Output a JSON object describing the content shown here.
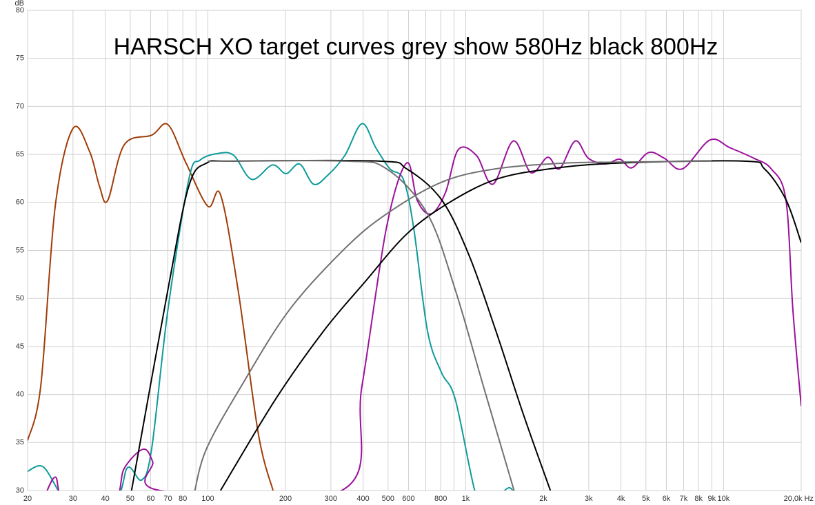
{
  "chart_data": {
    "type": "line",
    "title": "HARSCH XO target curves grey show 580Hz black 800Hz",
    "y_label": "dB",
    "log_x": true,
    "grid": true,
    "xlim": [
      20,
      20000
    ],
    "ylim": [
      30,
      80
    ],
    "yticks": [
      30,
      35,
      40,
      45,
      50,
      55,
      60,
      65,
      70,
      75,
      80
    ],
    "xticks": [
      20,
      30,
      40,
      50,
      60,
      70,
      80,
      100,
      200,
      300,
      400,
      500,
      600,
      800,
      {
        "value": 1000,
        "label": "1k"
      },
      {
        "value": 2000,
        "label": "2k"
      },
      {
        "value": 3000,
        "label": "3k"
      },
      {
        "value": 4000,
        "label": "4k"
      },
      {
        "value": 5000,
        "label": "5k"
      },
      {
        "value": 6000,
        "label": "6k"
      },
      {
        "value": 7000,
        "label": "7k"
      },
      {
        "value": 8000,
        "label": "8k"
      },
      {
        "value": 9000,
        "label": "9k"
      },
      {
        "value": 10000,
        "label": "10k"
      },
      {
        "value": 20000,
        "label": "20,0k Hz"
      }
    ],
    "xgrid_minor": [
      90,
      700,
      900
    ],
    "series": [
      {
        "color": "#a03c08",
        "x": [
          20,
          22.5,
          25.6,
          30,
          34.8,
          38,
          40.9,
          47.4,
          60.6,
          70,
          82,
          100,
          112,
          131,
          157,
          179
        ],
        "values": [
          35.2,
          40.9,
          59.6,
          67.7,
          65.3,
          61.7,
          60.2,
          66.0,
          67.0,
          68.1,
          64.2,
          59.6,
          60.8,
          50.9,
          35.9,
          30
        ]
      },
      {
        "color": "#0e9a9a",
        "x": [
          20,
          22.9,
          26.3,
          28,
          43.3,
          48.9,
          55.4,
          60.6,
          70,
          84.4,
          93.2,
          109.4,
          126,
          148,
          178,
          201,
          227,
          257,
          291,
          340,
          396,
          448,
          508,
          573,
          628,
          711,
          805,
          911,
          1084,
          1200,
          1475,
          1600
        ],
        "values": [
          32.0,
          32.5,
          30,
          29,
          29,
          32.4,
          31.1,
          34.4,
          48.8,
          62.4,
          64.4,
          65.1,
          64.9,
          62.4,
          63.9,
          63.0,
          64.0,
          61.9,
          62.8,
          64.9,
          68.2,
          65.7,
          63.5,
          62.4,
          57.4,
          46.6,
          42.3,
          39.5,
          30,
          28,
          30.3,
          28
        ]
      },
      {
        "color": "#9b119b",
        "x": [
          23,
          25.6,
          28,
          43,
          47.4,
          56.1,
          61.1,
          65.5,
          330,
          396,
          493,
          590,
          649,
          733,
          834,
          936,
          1100,
          1275,
          1530,
          1790,
          2080,
          2310,
          2660,
          2990,
          3480,
          3960,
          4400,
          5130,
          5890,
          6930,
          8850,
          10570,
          13100,
          15290,
          17440,
          18570,
          20000
        ],
        "values": [
          29,
          31.4,
          29,
          29,
          32.3,
          34.3,
          33.0,
          30,
          30,
          40.9,
          57.4,
          64.1,
          60.2,
          58.8,
          61.0,
          65.5,
          64.9,
          61.9,
          66.4,
          63.1,
          64.7,
          63.5,
          66.4,
          64.6,
          64.0,
          64.5,
          63.6,
          65.2,
          64.6,
          63.5,
          66.5,
          65.7,
          64.6,
          63.5,
          60.3,
          48.8,
          38.8
        ]
      },
      {
        "color": "#000000",
        "x": [
          50.6,
          70,
          84.4,
          99,
          126,
          462,
          590,
          805,
          1030,
          1310,
          1670,
          2130
        ],
        "values": [
          30,
          50.9,
          61.7,
          64.1,
          64.3,
          64.3,
          63.5,
          60.3,
          54.5,
          46.6,
          38.0,
          30
        ]
      },
      {
        "color": "#000000",
        "x": [
          112,
          183,
          281,
          406,
          590,
          853,
          1310,
          2130,
          3960,
          12000,
          14400,
          17440,
          20000
        ],
        "values": [
          30,
          39.5,
          46.6,
          51.7,
          56.7,
          59.9,
          62.4,
          63.5,
          64.1,
          64.3,
          63.5,
          60.3,
          55.8
        ]
      },
      {
        "color": "#707070",
        "x": [
          100,
          340,
          493,
          711,
          911,
          1170,
          1540
        ],
        "values": [
          64.3,
          64.3,
          63.5,
          58.8,
          50.9,
          40.9,
          30
        ]
      },
      {
        "color": "#707070",
        "x": [
          89,
          99,
          135,
          207,
          340,
          493,
          805,
          1310,
          2450,
          3960,
          9000
        ],
        "values": [
          30,
          34.4,
          40.9,
          48.8,
          55.2,
          58.8,
          62.1,
          63.5,
          64.1,
          64.2,
          64.3
        ]
      }
    ]
  }
}
